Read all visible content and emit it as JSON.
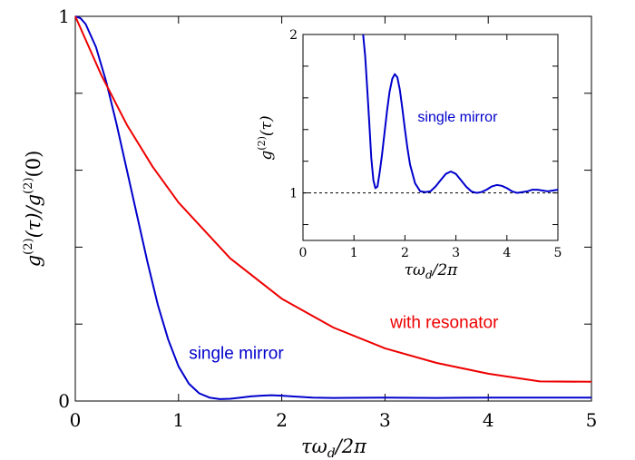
{
  "chart_data": [
    {
      "type": "line",
      "title": "",
      "xlabel": "τω_d/2π",
      "ylabel": "g(2)(τ)/g(2)(0)",
      "xlim": [
        0,
        5
      ],
      "ylim": [
        0,
        1
      ],
      "x_ticks": [
        0,
        1,
        2,
        3,
        4,
        5
      ],
      "y_tick_labels": [
        {
          "value": 0,
          "label": "0"
        },
        {
          "value": 1,
          "label": "1"
        }
      ],
      "y_minor_ticks": [
        0.2,
        0.4,
        0.6,
        0.8
      ],
      "grid": false,
      "legend": "none",
      "series": [
        {
          "name": "single mirror",
          "color": "#0000cc",
          "x": [
            0,
            0.05,
            0.1,
            0.2,
            0.3,
            0.4,
            0.5,
            0.6,
            0.7,
            0.8,
            0.9,
            1.0,
            1.1,
            1.2,
            1.3,
            1.4,
            1.5,
            1.6,
            1.7,
            1.8,
            1.9,
            2.0,
            2.1,
            2.3,
            2.5,
            3.0,
            3.5,
            4.0,
            4.5,
            5.0
          ],
          "y": [
            1.0,
            0.995,
            0.98,
            0.92,
            0.83,
            0.72,
            0.6,
            0.48,
            0.36,
            0.25,
            0.16,
            0.09,
            0.045,
            0.02,
            0.009,
            0.005,
            0.006,
            0.009,
            0.012,
            0.014,
            0.015,
            0.014,
            0.012,
            0.009,
            0.008,
            0.009,
            0.008,
            0.009,
            0.009,
            0.009
          ]
        },
        {
          "name": "with resonator",
          "color": "#ee0000",
          "x": [
            0,
            0.25,
            0.5,
            0.75,
            1.0,
            1.5,
            2.0,
            2.5,
            3.0,
            3.5,
            4.0,
            4.5,
            5.0
          ],
          "y": [
            1.0,
            0.848,
            0.718,
            0.609,
            0.516,
            0.371,
            0.266,
            0.191,
            0.137,
            0.099,
            0.071,
            0.051,
            0.05
          ]
        }
      ],
      "annotations": [
        {
          "text": "with resonator",
          "series": "with resonator",
          "x": 3.05,
          "y": 0.19
        },
        {
          "text": "single mirror",
          "series": "single mirror",
          "x": 1.1,
          "y": 0.11
        }
      ]
    },
    {
      "type": "line",
      "title": "",
      "xlabel": "τω_d/2π",
      "ylabel": "g(2)(τ)",
      "xlim": [
        0,
        5
      ],
      "ylim": [
        0.7,
        2
      ],
      "x_ticks": [
        0,
        1,
        2,
        3,
        4,
        5
      ],
      "y_tick_labels": [
        {
          "value": 1,
          "label": "1"
        },
        {
          "value": 2,
          "label": "2"
        }
      ],
      "y_minor_ticks": [
        0.8,
        1.2,
        1.4,
        1.6,
        1.8
      ],
      "reference_line": {
        "y": 1,
        "style": "dashed"
      },
      "grid": false,
      "legend": "none",
      "series": [
        {
          "name": "single mirror",
          "color": "#0000cc",
          "x": [
            1.18,
            1.22,
            1.26,
            1.3,
            1.34,
            1.38,
            1.42,
            1.46,
            1.5,
            1.55,
            1.6,
            1.65,
            1.7,
            1.75,
            1.8,
            1.85,
            1.9,
            1.95,
            2.0,
            2.05,
            2.1,
            2.2,
            2.3,
            2.4,
            2.5,
            2.6,
            2.7,
            2.8,
            2.9,
            3.0,
            3.1,
            3.2,
            3.3,
            3.4,
            3.5,
            3.6,
            3.7,
            3.8,
            3.9,
            4.0,
            4.1,
            4.2,
            4.3,
            4.4,
            4.5,
            4.6,
            4.7,
            4.8,
            4.9,
            5.0
          ],
          "y": [
            2.0,
            1.86,
            1.66,
            1.44,
            1.22,
            1.08,
            1.03,
            1.04,
            1.12,
            1.24,
            1.38,
            1.52,
            1.64,
            1.72,
            1.75,
            1.73,
            1.65,
            1.53,
            1.4,
            1.28,
            1.18,
            1.06,
            1.01,
            1.005,
            1.01,
            1.04,
            1.08,
            1.12,
            1.135,
            1.12,
            1.08,
            1.04,
            1.01,
            1.0,
            1.005,
            1.02,
            1.04,
            1.05,
            1.045,
            1.03,
            1.01,
            1.0,
            1.005,
            1.01,
            1.02,
            1.02,
            1.015,
            1.01,
            1.015,
            1.02
          ]
        }
      ],
      "annotations": [
        {
          "text": "single mirror",
          "series": "single mirror",
          "x": 2.25,
          "y": 1.45
        }
      ]
    }
  ]
}
